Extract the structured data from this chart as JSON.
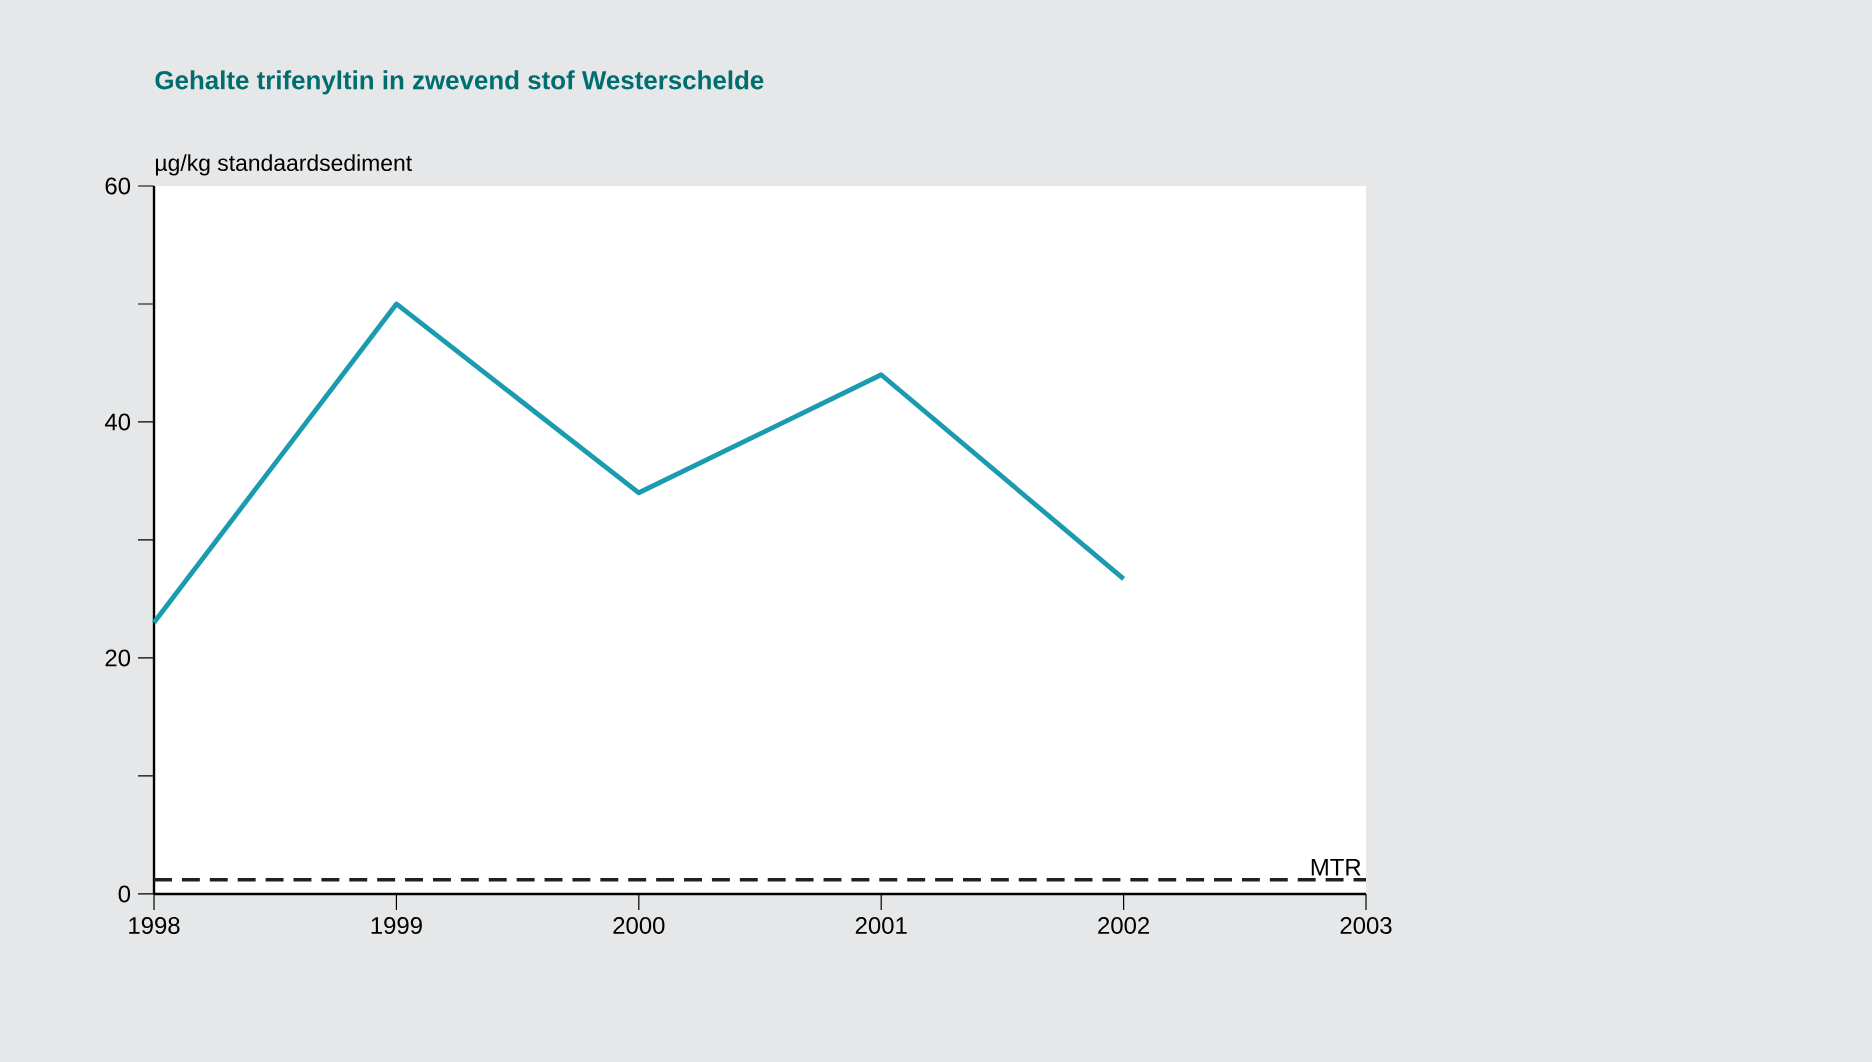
{
  "chart_data": {
    "type": "line",
    "title": "Gehalte trifenyltin in zwevend stof Westerschelde",
    "ylabel": "µg/kg standaardsediment",
    "x": [
      1998,
      1999,
      2000,
      2001,
      2002
    ],
    "series": [
      {
        "color": "#1a9bb0",
        "values": [
          23,
          50,
          34,
          44,
          26.7
        ]
      }
    ],
    "xlim": [
      1998,
      2003
    ],
    "xticks": [
      1998,
      1999,
      2000,
      2001,
      2002,
      2003
    ],
    "ylim": [
      0,
      60
    ],
    "yticks": [
      0,
      {
        "value": 10,
        "label": null
      },
      20,
      {
        "value": 30,
        "label": null
      },
      40,
      {
        "value": 50,
        "label": null
      },
      60
    ],
    "ref_lines": [
      {
        "axis": "y",
        "value": 1.2,
        "label": "MTR",
        "color": "#231f20",
        "line_style": "dashed"
      }
    ],
    "grid": false,
    "marker": "none",
    "line_style": "solid"
  }
}
